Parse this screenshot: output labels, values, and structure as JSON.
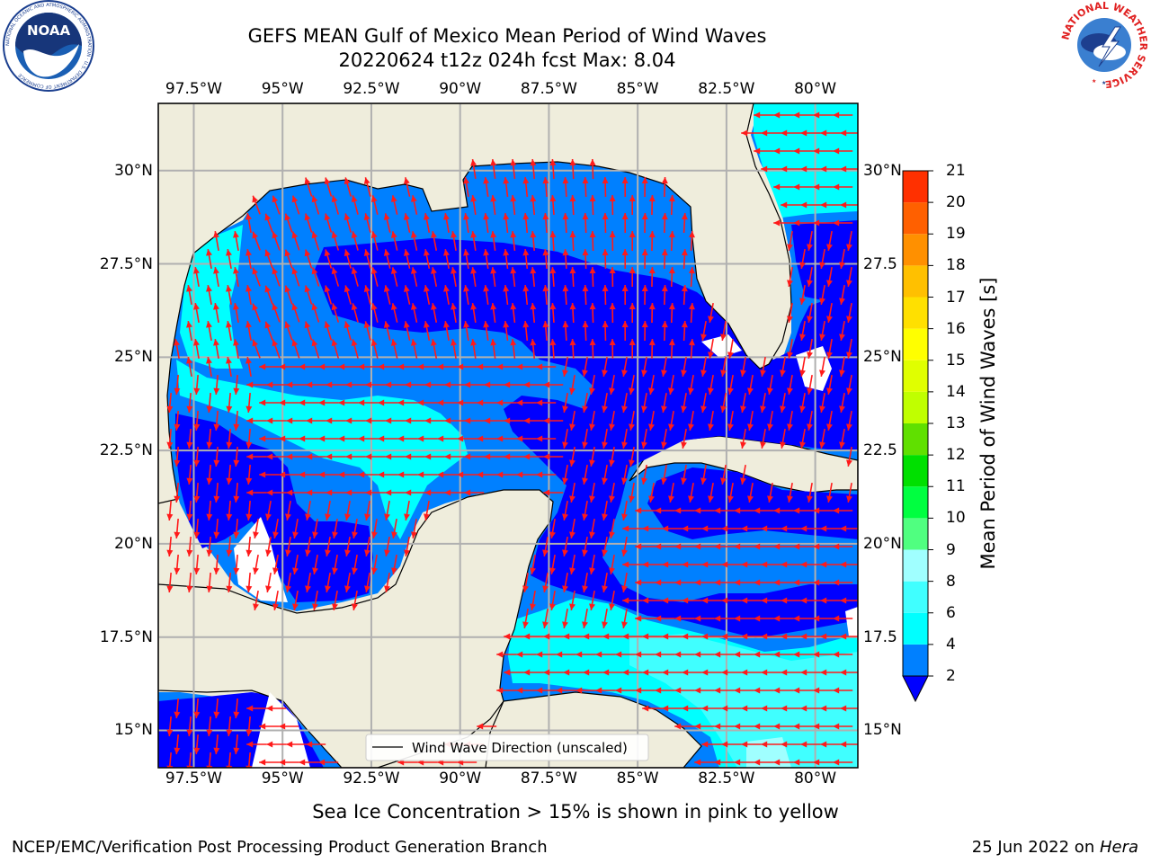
{
  "title": {
    "line1": "GEFS MEAN Gulf of Mexico Mean Period of Wind Waves",
    "line2": "20220624 t12z 024h fcst   Max: 8.04"
  },
  "map": {
    "lon_range": [
      -98.5,
      -78.8
    ],
    "lat_range": [
      14.0,
      31.8
    ],
    "lon_ticks": [
      "97.5°W",
      "95°W",
      "92.5°W",
      "90°W",
      "87.5°W",
      "85°W",
      "82.5°W",
      "80°W"
    ],
    "lon_tick_values": [
      -97.5,
      -95,
      -92.5,
      -90,
      -87.5,
      -85,
      -82.5,
      -80
    ],
    "lat_ticks_left": [
      "30°N",
      "27.5°N",
      "25°N",
      "22.5°N",
      "20°N",
      "17.5°N",
      "15°N"
    ],
    "lat_ticks_right": [
      "30°N",
      "27.5",
      "25°N",
      "22.5",
      "20°N",
      "17.5",
      "15°N"
    ],
    "lat_tick_values": [
      30,
      27.5,
      25,
      22.5,
      20,
      17.5,
      15
    ],
    "grid": true,
    "land_color": "#efeddc",
    "arrow_color": "#ff1a1a",
    "legend_label": "Wind Wave Direction (unscaled)"
  },
  "colorbar": {
    "label": "Mean Period of Wind Waves [s]",
    "levels": [
      2,
      4,
      6,
      8,
      9,
      10,
      11,
      12,
      13,
      14,
      15,
      16,
      17,
      18,
      19,
      20,
      21
    ],
    "level_labels": [
      "2",
      "4",
      "6",
      "8",
      "9",
      "10",
      "11",
      "12",
      "13",
      "14",
      "15",
      "16",
      "17",
      "18",
      "19",
      "20",
      "21"
    ],
    "colors": [
      "#0080ff",
      "#00ffff",
      "#40ffff",
      "#a0ffff",
      "#50ff80",
      "#00ff40",
      "#00e000",
      "#60e000",
      "#c0ff00",
      "#e0ff00",
      "#ffff00",
      "#ffe000",
      "#ffc000",
      "#ff9000",
      "#ff6000",
      "#ff3000"
    ],
    "under_color": "#0000ff"
  },
  "note": "Sea Ice Concentration > 15% is shown in pink to yellow",
  "footer": {
    "left": "NCEP/EMC/Verification Post Processing Product Generation Branch",
    "date": "25 Jun 2022 on ",
    "machine": "Hera"
  },
  "logos": {
    "noaa_text": "NOAA",
    "noaa_ring_text": "NATIONAL OCEANIC AND ATMOSPHERIC ADMINISTRATION · U.S. DEPARTMENT OF COMMERCE",
    "nws_ring_text": "NATIONAL WEATHER SERVICE"
  }
}
